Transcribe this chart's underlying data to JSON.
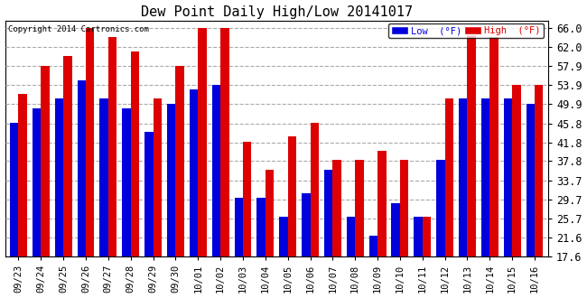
{
  "title": "Dew Point Daily High/Low 20141017",
  "copyright": "Copyright 2014 Cartronics.com",
  "dates": [
    "09/23",
    "09/24",
    "09/25",
    "09/26",
    "09/27",
    "09/28",
    "09/29",
    "09/30",
    "10/01",
    "10/02",
    "10/03",
    "10/04",
    "10/05",
    "10/06",
    "10/07",
    "10/08",
    "10/09",
    "10/10",
    "10/11",
    "10/12",
    "10/13",
    "10/14",
    "10/15",
    "10/16"
  ],
  "low": [
    46,
    49,
    51,
    55,
    51,
    49,
    44,
    50,
    53,
    54,
    30,
    30,
    26,
    31,
    36,
    26,
    22,
    29,
    26,
    38,
    51,
    51,
    51,
    50
  ],
  "high": [
    52,
    58,
    60,
    66,
    64,
    61,
    51,
    58,
    66,
    66,
    42,
    36,
    43,
    46,
    38,
    38,
    40,
    38,
    26,
    51,
    66,
    64,
    54,
    54
  ],
  "low_color": "#0000dd",
  "high_color": "#dd0000",
  "bg_color": "#ffffff",
  "grid_color": "#aaaaaa",
  "yticks": [
    17.6,
    21.6,
    25.7,
    29.7,
    33.7,
    37.8,
    41.8,
    45.8,
    49.9,
    53.9,
    57.9,
    62.0,
    66.0
  ],
  "ymin": 17.6,
  "ymax": 67.5,
  "bar_width": 0.38,
  "legend_low_label": "Low  (°F)",
  "legend_high_label": "High  (°F)"
}
